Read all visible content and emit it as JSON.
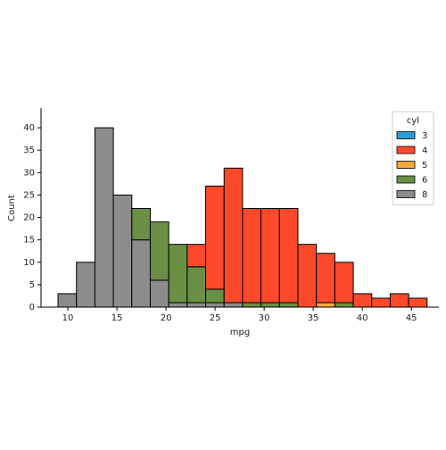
{
  "chart_data": {
    "type": "histogram",
    "stacked": true,
    "x_label": "mpg",
    "y_label": "Count",
    "legend_title": "cyl",
    "legend_position": "upper right",
    "bins": [
      9,
      10.88,
      12.76,
      14.64,
      16.52,
      18.4,
      20.28,
      22.16,
      24.04,
      25.92,
      27.8,
      29.68,
      31.56,
      33.44,
      35.32,
      37.2,
      39.08,
      40.96,
      42.84,
      44.72,
      46.6
    ],
    "series": [
      {
        "name": "3",
        "color": "#2a9fd6",
        "values": [
          0,
          0,
          0,
          0,
          0,
          0,
          0,
          0,
          0,
          0,
          0,
          0,
          0,
          0,
          0,
          0,
          0,
          0,
          0,
          0
        ]
      },
      {
        "name": "4",
        "color": "#fc4a2a",
        "values": [
          0,
          0,
          0,
          0,
          0,
          0,
          0,
          5,
          23,
          30,
          21,
          21,
          21,
          14,
          11,
          9,
          3,
          2,
          3,
          2
        ]
      },
      {
        "name": "5",
        "color": "#f5a93a",
        "values": [
          0,
          0,
          0,
          0,
          0,
          0,
          0,
          0,
          0,
          0,
          0,
          0,
          0,
          0,
          1,
          0,
          0,
          0,
          0,
          0
        ]
      },
      {
        "name": "6",
        "color": "#6a8f45",
        "values": [
          0,
          0,
          0,
          0,
          7,
          13,
          13,
          8,
          3,
          0,
          1,
          1,
          1,
          0,
          0,
          1,
          0,
          0,
          0,
          0
        ]
      },
      {
        "name": "8",
        "color": "#8c8c8c",
        "values": [
          3,
          10,
          40,
          25,
          15,
          6,
          1,
          1,
          1,
          1,
          0,
          0,
          0,
          0,
          0,
          0,
          0,
          0,
          0,
          0
        ]
      }
    ],
    "xlim": [
      7.27,
      47.8
    ],
    "xticks": [
      10,
      15,
      20,
      25,
      30,
      35,
      40,
      45
    ],
    "ylim": [
      0,
      44.4
    ],
    "yticks": [
      0,
      5,
      10,
      15,
      20,
      25,
      30,
      35,
      40
    ]
  }
}
